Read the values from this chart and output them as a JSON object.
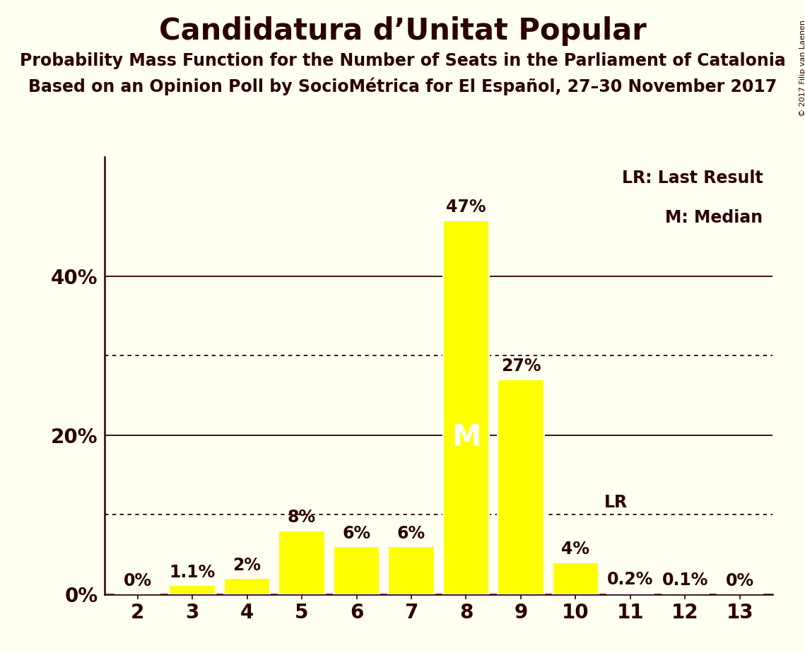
{
  "title": "Candidatura d’Unitat Popular",
  "subtitle1": "Probability Mass Function for the Number of Seats in the Parliament of Catalonia",
  "subtitle2": "Based on an Opinion Poll by SocioMétrica for El Español, 27–30 November 2017",
  "copyright": "© 2017 Filip van Laenen",
  "categories": [
    2,
    3,
    4,
    5,
    6,
    7,
    8,
    9,
    10,
    11,
    12,
    13
  ],
  "values": [
    0.0,
    1.1,
    2.0,
    8.0,
    6.0,
    6.0,
    47.0,
    27.0,
    4.0,
    0.2,
    0.1,
    0.0
  ],
  "bar_color": "#ffff00",
  "bar_edge_color": "#ffffff",
  "background_color": "#fffff2",
  "text_color": "#2a0000",
  "label_texts": [
    "0%",
    "1.1%",
    "2%",
    "8%",
    "6%",
    "6%",
    "47%",
    "27%",
    "4%",
    "0.2%",
    "0.1%",
    "0%"
  ],
  "median_seat": 8,
  "lr_seat": 10,
  "lr_value": 10.0,
  "dotted_lines": [
    10.0,
    30.0
  ],
  "solid_lines": [
    20.0,
    40.0
  ],
  "ylim": [
    0,
    55
  ],
  "legend_lr": "LR: Last Result",
  "legend_m": "M: Median",
  "title_fontsize": 30,
  "subtitle_fontsize": 17,
  "axis_fontsize": 20,
  "bar_label_fontsize": 17,
  "legend_fontsize": 17,
  "copyright_fontsize": 8
}
